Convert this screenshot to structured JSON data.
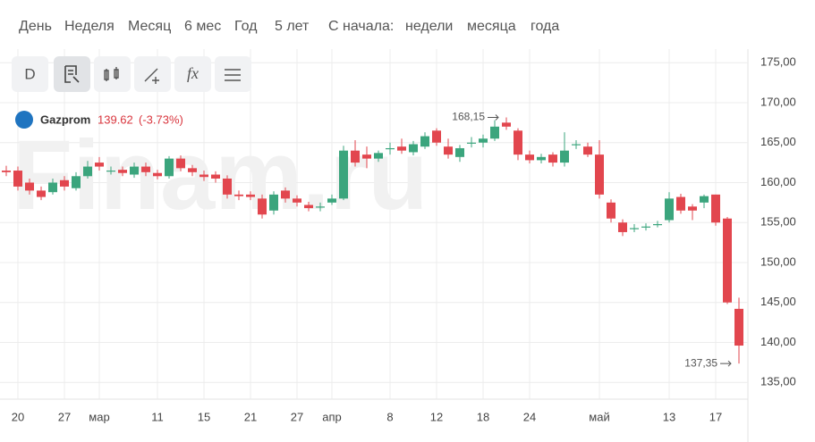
{
  "periods": [
    "День",
    "Неделя",
    "Месяц",
    "6 мес",
    "Год",
    "5 лет",
    "С начала:",
    "недели",
    "месяца",
    "года"
  ],
  "toolbar": [
    "D",
    "fx"
  ],
  "chart_data": {
    "type": "candlestick",
    "watermark": "Finam.ru",
    "legend": {
      "name": "Gazprom",
      "price": "139.62",
      "change": "(-3.73%)"
    },
    "up_color": "#3ba57d",
    "down_color": "#e2464e",
    "categories": [
      null,
      "20",
      null,
      null,
      null,
      "27",
      null,
      null,
      "мар",
      null,
      null,
      null,
      null,
      "11",
      null,
      null,
      null,
      "15",
      null,
      null,
      null,
      "21",
      null,
      null,
      null,
      "27",
      null,
      null,
      "апр",
      null,
      null,
      null,
      null,
      "8",
      null,
      null,
      null,
      "12",
      null,
      null,
      null,
      "18",
      null,
      null,
      null,
      "24",
      null,
      null,
      null,
      null,
      null,
      "май",
      null,
      null,
      null,
      null,
      null,
      "13",
      null,
      null,
      null,
      "17",
      null,
      null
    ],
    "open": [
      161.5,
      161.5,
      160,
      159,
      158.8,
      160.3,
      159.3,
      160.8,
      162.5,
      161.5,
      161.6,
      161,
      162,
      161.2,
      160.8,
      163,
      161.8,
      161,
      161,
      160.5,
      158.5,
      158.5,
      158,
      156.5,
      159,
      158,
      157.2,
      157,
      157.5,
      158,
      164,
      163.5,
      163,
      164.3,
      164.5,
      163.8,
      164.5,
      166.5,
      164.5,
      163.2,
      165,
      165,
      165.5,
      167.5,
      166.5,
      163.5,
      162.8,
      163.5,
      162.5,
      164.8,
      164.5,
      163.5,
      157.5,
      155,
      154.3,
      154.5,
      154.8,
      155.3,
      158.2,
      157,
      157.5,
      158.5,
      155.5,
      144.2
    ],
    "high": [
      162.1,
      162,
      160.5,
      159.5,
      160.5,
      160.8,
      161.3,
      162.7,
      163.2,
      162,
      162,
      162.5,
      162.5,
      161.6,
      163.3,
      163.4,
      162.2,
      161.5,
      161.4,
      160.9,
      159,
      158.9,
      158.5,
      158.9,
      159.4,
      158.4,
      157.6,
      157.5,
      158.5,
      164.6,
      165.3,
      164.5,
      164,
      165,
      165.5,
      165.2,
      166.3,
      166.8,
      165.5,
      164.7,
      165.7,
      166,
      167.8,
      168.15,
      166.8,
      164,
      163.6,
      163.8,
      166.3,
      165.3,
      165,
      165.3,
      157.9,
      155.4,
      154.8,
      154.9,
      155.2,
      158.8,
      158.6,
      157.3,
      158.5,
      158.5,
      155.7,
      145.6
    ],
    "low": [
      160.8,
      159,
      158.5,
      157.8,
      158.5,
      159,
      159,
      160.5,
      161.5,
      161,
      160.8,
      160.6,
      160.8,
      160.4,
      160.5,
      161.4,
      160.8,
      160.2,
      160,
      158,
      157.8,
      157.8,
      155.5,
      156,
      157.5,
      157,
      156.4,
      156.4,
      157.2,
      157.8,
      162,
      161.8,
      162.6,
      163.5,
      163.6,
      163.4,
      164.2,
      164.6,
      163,
      162.6,
      164.4,
      164.4,
      165.2,
      166.6,
      162.8,
      162.4,
      162.4,
      162,
      162,
      164.2,
      163.2,
      158,
      155,
      153.3,
      153.8,
      154,
      154.4,
      155,
      156.1,
      155.3,
      156.8,
      154.6,
      144.8,
      137.35
    ],
    "close": [
      161.3,
      159.5,
      159,
      158.2,
      160,
      159.5,
      160.8,
      162,
      162,
      161.5,
      161.2,
      162,
      161.3,
      160.8,
      163,
      161.8,
      161.3,
      160.7,
      160.5,
      158.5,
      158.3,
      158.2,
      156,
      158.5,
      158,
      157.5,
      156.8,
      157,
      158,
      164,
      162.5,
      163,
      163.7,
      164.3,
      164,
      164.8,
      165.8,
      165,
      163.5,
      164.3,
      165,
      165.5,
      167,
      167,
      163.5,
      162.8,
      163.2,
      162.5,
      164,
      164.8,
      163.5,
      158.5,
      155.5,
      153.8,
      154.3,
      154.5,
      154.8,
      158,
      156.5,
      156.5,
      158.3,
      155,
      145,
      139.6
    ],
    "annotations": [
      {
        "text": "168,15",
        "value": 168.15,
        "index": 43
      },
      {
        "text": "137,35",
        "value": 137.35,
        "index": 63
      }
    ],
    "ylim": [
      132.9,
      176.7
    ],
    "yticks": [
      {
        "value": 135,
        "label": "135,00"
      },
      {
        "value": 140,
        "label": "140,00"
      },
      {
        "value": 145,
        "label": "145,00"
      },
      {
        "value": 150,
        "label": "150,00"
      },
      {
        "value": 155,
        "label": "155,00"
      },
      {
        "value": 160,
        "label": "160,00"
      },
      {
        "value": 165,
        "label": "165,00"
      },
      {
        "value": 170,
        "label": "170,00"
      },
      {
        "value": 175,
        "label": "175,00"
      }
    ],
    "grid": true
  }
}
